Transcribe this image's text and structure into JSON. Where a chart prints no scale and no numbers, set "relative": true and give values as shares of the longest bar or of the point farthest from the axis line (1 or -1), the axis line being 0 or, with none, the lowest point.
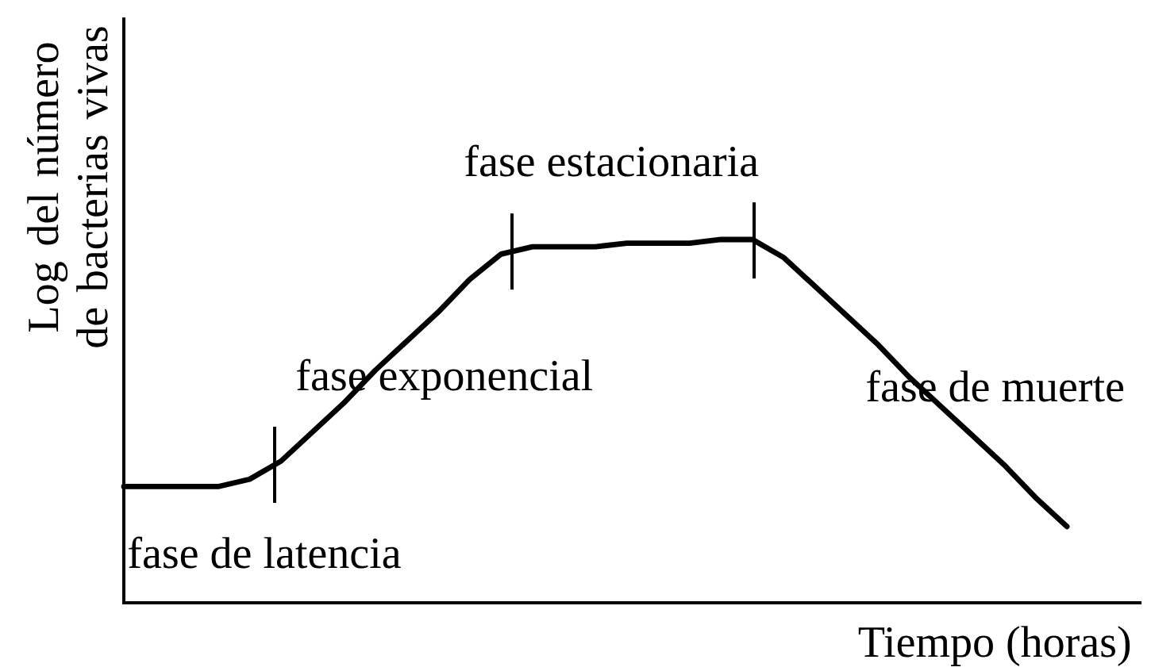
{
  "chart_data": {
    "type": "line",
    "relative": true,
    "xlabel": "Tiempo (horas)",
    "ylabel": "Log del número de bacterias vivas",
    "categories": [
      null,
      null,
      null,
      null,
      null,
      null,
      null,
      null,
      null,
      null,
      null,
      null,
      null,
      null,
      null,
      null,
      null,
      null,
      null,
      null,
      null,
      null,
      null,
      null,
      null,
      null,
      null,
      null,
      null,
      null,
      null
    ],
    "values": [
      0.32,
      0.32,
      0.32,
      0.32,
      0.34,
      0.39,
      0.47,
      0.55,
      0.64,
      0.72,
      0.8,
      0.89,
      0.96,
      0.98,
      0.98,
      0.98,
      0.99,
      0.99,
      0.99,
      1.0,
      1.0,
      0.95,
      0.87,
      0.79,
      0.71,
      0.62,
      0.54,
      0.46,
      0.38,
      0.29,
      0.21
    ],
    "color": "#000000",
    "marker": "none",
    "line_style": "solid",
    "annotations": [
      "fase de latencia",
      "fase exponencial",
      "fase estacionaria",
      "fase de muerte"
    ]
  }
}
